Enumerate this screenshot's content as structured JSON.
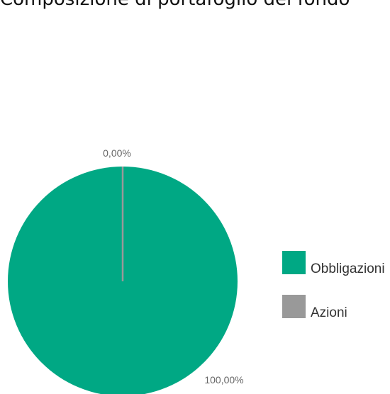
{
  "title": "Composizione di portafoglio del fondo",
  "chart_data": {
    "type": "pie",
    "categories": [
      "Obbligazioni",
      "Azioni"
    ],
    "values": [
      100.0,
      0.0
    ],
    "data_labels": [
      "100,00%",
      "0,00%"
    ],
    "colors": [
      "#00a884",
      "#999999"
    ],
    "legend": "right"
  }
}
